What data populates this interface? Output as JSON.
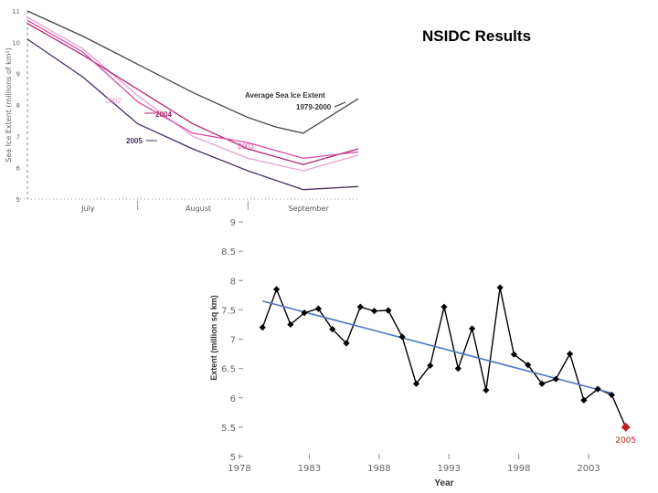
{
  "slide": {
    "title": "NSIDC Results"
  },
  "chart_data": [
    {
      "type": "line",
      "title": "",
      "ylabel": "Sea Ice Extent (millions of km²)",
      "xlabel": "",
      "categories": [
        "July",
        "August",
        "September"
      ],
      "yticks": [
        "11",
        "10",
        "9",
        "8",
        "7",
        "6",
        "5"
      ],
      "ylim": [
        5,
        11
      ],
      "x_range": [
        0,
        3
      ],
      "series": [
        {
          "name": "Average Sea Ice Extent 1979-2000",
          "label": "Average Sea Ice Extent",
          "label2": "1979-2000",
          "color": "#444444",
          "x": [
            0,
            0.5,
            1.0,
            1.5,
            2.0,
            2.25,
            2.5,
            3.0
          ],
          "y": [
            11.0,
            10.2,
            9.3,
            8.4,
            7.6,
            7.3,
            7.1,
            8.2
          ]
        },
        {
          "name": "2002",
          "label": "2002",
          "color": "#e8a0d0",
          "x": [
            0,
            0.5,
            1.0,
            1.5,
            2.0,
            2.5,
            3.0
          ],
          "y": [
            10.8,
            9.8,
            8.3,
            7.0,
            6.3,
            5.9,
            6.4
          ]
        },
        {
          "name": "2004",
          "label": "2004",
          "color": "#b0246e",
          "x": [
            0,
            0.5,
            1.0,
            1.5,
            2.0,
            2.5,
            3.0
          ],
          "y": [
            10.6,
            9.6,
            8.5,
            7.4,
            6.6,
            6.1,
            6.6
          ]
        },
        {
          "name": "2003",
          "label": "2003",
          "color": "#d94aa2",
          "x": [
            0,
            0.5,
            1.0,
            1.5,
            2.0,
            2.5,
            3.0
          ],
          "y": [
            10.7,
            9.7,
            8.1,
            7.1,
            6.8,
            6.3,
            6.5
          ]
        },
        {
          "name": "2005",
          "label": "2005",
          "color": "#4a2d5e",
          "x": [
            0,
            0.5,
            1.0,
            1.5,
            2.0,
            2.5,
            3.0
          ],
          "y": [
            10.1,
            8.9,
            7.4,
            6.6,
            5.9,
            5.3,
            5.4
          ]
        }
      ]
    },
    {
      "type": "line",
      "title": "",
      "xlabel": "Year",
      "ylabel": "Extent (million sq km)",
      "ylim": [
        5,
        9
      ],
      "xlim": [
        1978,
        2006
      ],
      "yticks": [
        "9",
        "8.5",
        "8",
        "7.5",
        "7",
        "6.5",
        "6",
        "5.5",
        "5"
      ],
      "ytick_values": [
        9,
        8.5,
        8,
        7.5,
        7,
        6.5,
        6,
        5.5,
        5
      ],
      "xticks": [
        "1978",
        "1983",
        "1988",
        "1993",
        "1998",
        "2003"
      ],
      "xtick_values": [
        1978,
        1983,
        1988,
        1993,
        1998,
        2003
      ],
      "series": [
        {
          "name": "Extent",
          "color": "#000000",
          "x": [
            1979,
            1980,
            1981,
            1982,
            1983,
            1984,
            1985,
            1986,
            1987,
            1988,
            1989,
            1990,
            1991,
            1992,
            1993,
            1994,
            1995,
            1996,
            1997,
            1998,
            1999,
            2000,
            2001,
            2002,
            2003,
            2004
          ],
          "y": [
            7.2,
            7.85,
            7.25,
            7.45,
            7.52,
            7.17,
            6.93,
            7.55,
            7.48,
            7.49,
            7.04,
            6.24,
            6.55,
            7.55,
            6.5,
            7.18,
            6.13,
            7.88,
            6.74,
            6.56,
            6.24,
            6.32,
            6.75,
            5.96,
            6.15,
            6.05
          ]
        },
        {
          "name": "Trend",
          "color": "#4a78c0",
          "x": [
            1979,
            2004
          ],
          "y": [
            7.65,
            6.08
          ]
        }
      ],
      "highlight": {
        "x": 2005,
        "y": 5.5,
        "label": "2005",
        "color": "#c0201f"
      }
    }
  ]
}
